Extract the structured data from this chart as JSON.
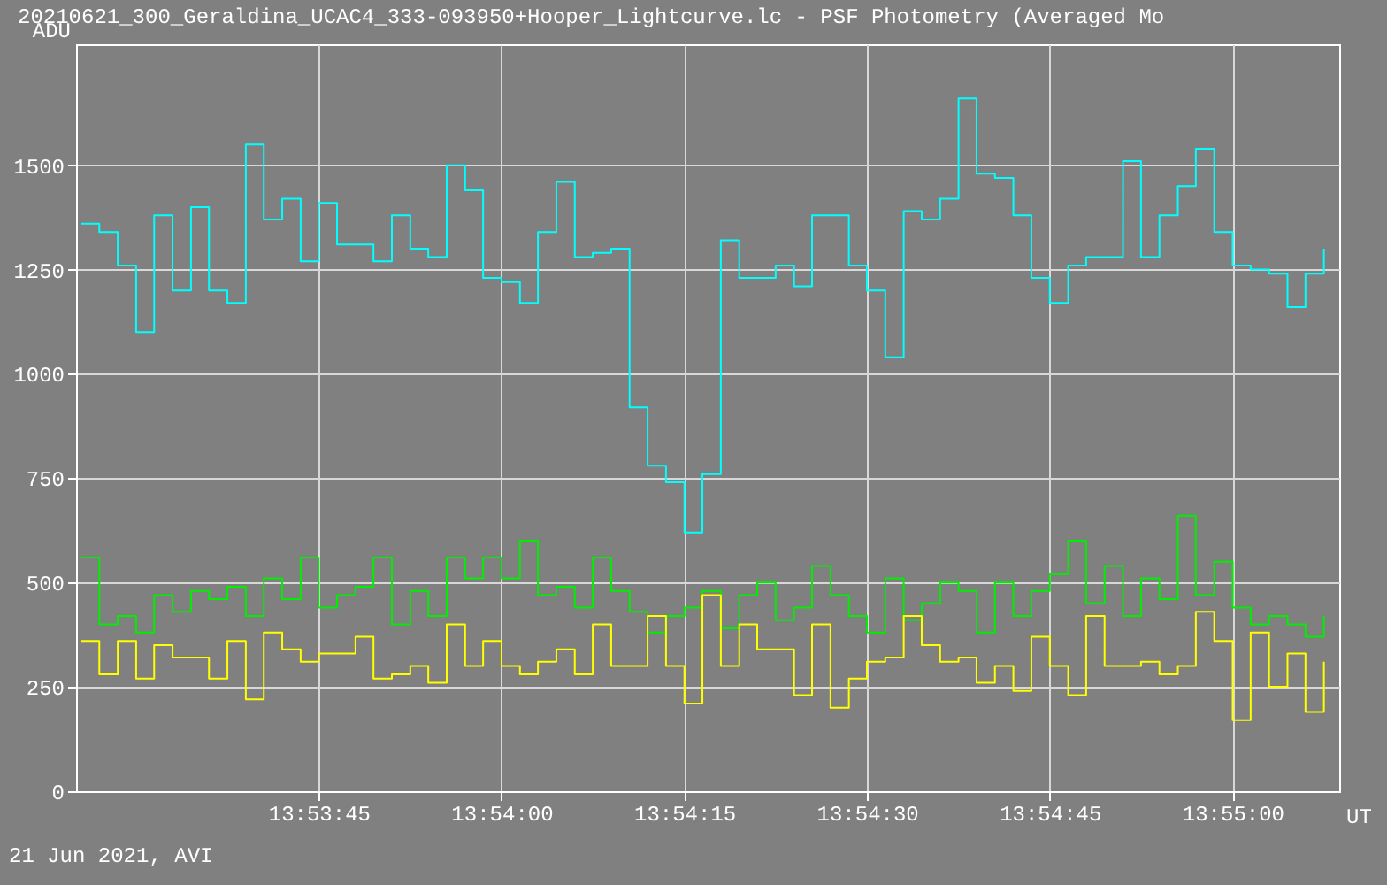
{
  "chart_data": {
    "type": "step",
    "title": "20210621_300_Geraldina_UCAC4_333-093950+Hooper_Lightcurve.lc - PSF Photometry (Averaged Mo",
    "xlabel": "UT",
    "ylabel": "ADU",
    "annotations": [
      "21 Jun 2021, AVI"
    ],
    "x": [
      13.89042,
      13.89083,
      13.89125,
      13.89167,
      13.89208,
      13.8925,
      13.89292,
      13.89333,
      13.89375,
      13.89417,
      13.89458,
      13.895,
      13.89542,
      13.89583,
      13.89625,
      13.89667,
      13.89708,
      13.8975,
      13.89792,
      13.89833,
      13.89875,
      13.89917,
      13.89958,
      13.9,
      13.90042,
      13.90083,
      13.90125,
      13.90167,
      13.90208,
      13.9025,
      13.90292,
      13.90333,
      13.90375,
      13.90417,
      13.90458,
      13.905,
      13.90542,
      13.90583,
      13.90625,
      13.90667,
      13.90708,
      13.9075,
      13.90792,
      13.90833,
      13.90875,
      13.90917,
      13.90958,
      13.91,
      13.91042,
      13.91083,
      13.91125,
      13.91167,
      13.91208,
      13.9125,
      13.91292,
      13.91333,
      13.91375,
      13.91417,
      13.91458,
      13.915,
      13.91542,
      13.91583,
      13.91625,
      13.91667,
      13.91708,
      13.9175,
      13.91792,
      13.91833,
      13.91875
    ],
    "series": [
      {
        "color": "#00ffff",
        "values": [
          1360,
          1340,
          1260,
          1100,
          1380,
          1200,
          1400,
          1200,
          1170,
          1550,
          1370,
          1420,
          1270,
          1410,
          1310,
          1310,
          1270,
          1380,
          1300,
          1280,
          1500,
          1440,
          1230,
          1220,
          1170,
          1340,
          1460,
          1280,
          1290,
          1300,
          920,
          780,
          740,
          620,
          760,
          1320,
          1230,
          1230,
          1260,
          1210,
          1380,
          1380,
          1260,
          1200,
          1040,
          1390,
          1370,
          1420,
          1660,
          1480,
          1470,
          1380,
          1230,
          1170,
          1260,
          1280,
          1280,
          1510,
          1280,
          1380,
          1450,
          1540,
          1340,
          1260,
          1250,
          1240,
          1160,
          1240,
          1300
        ]
      },
      {
        "color": "#00ee00",
        "values": [
          560,
          400,
          420,
          380,
          470,
          430,
          480,
          460,
          490,
          420,
          510,
          460,
          560,
          440,
          470,
          490,
          560,
          400,
          480,
          420,
          560,
          510,
          560,
          510,
          600,
          470,
          490,
          440,
          560,
          480,
          430,
          380,
          420,
          440,
          480,
          390,
          470,
          500,
          410,
          440,
          540,
          470,
          420,
          380,
          510,
          410,
          450,
          500,
          480,
          380,
          500,
          420,
          480,
          520,
          600,
          450,
          540,
          420,
          510,
          460,
          660,
          470,
          550,
          440,
          400,
          420,
          400,
          370,
          420
        ]
      },
      {
        "color": "#ffff00",
        "values": [
          360,
          280,
          360,
          270,
          350,
          320,
          320,
          270,
          360,
          220,
          380,
          340,
          310,
          330,
          330,
          370,
          270,
          280,
          300,
          260,
          400,
          300,
          360,
          300,
          280,
          310,
          340,
          280,
          400,
          300,
          300,
          420,
          300,
          210,
          470,
          300,
          400,
          340,
          340,
          230,
          400,
          200,
          270,
          310,
          320,
          420,
          350,
          310,
          320,
          260,
          300,
          240,
          370,
          300,
          230,
          420,
          300,
          300,
          310,
          280,
          300,
          430,
          360,
          170,
          380,
          250,
          330,
          190,
          310
        ]
      }
    ],
    "xlim": [
      13.8903,
      13.9191
    ],
    "xticks": [
      {
        "value": 13.895833,
        "label": "13:53:45"
      },
      {
        "value": 13.9,
        "label": "13:54:00"
      },
      {
        "value": 13.904167,
        "label": "13:54:15"
      },
      {
        "value": 13.908333,
        "label": "13:54:30"
      },
      {
        "value": 13.9125,
        "label": "13:54:45"
      },
      {
        "value": 13.916667,
        "label": "13:55:00"
      }
    ],
    "ylim": [
      0,
      1790
    ],
    "yticks": [
      0,
      250,
      500,
      750,
      1000,
      1250,
      1500
    ],
    "grid": true,
    "legend": false
  }
}
